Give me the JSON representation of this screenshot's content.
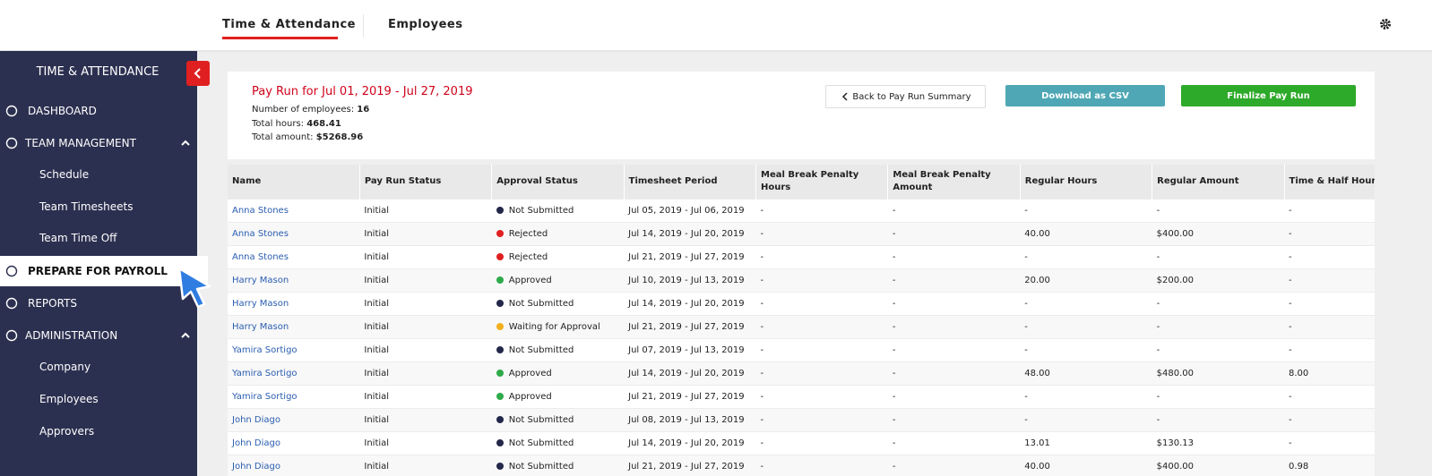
{
  "top_nav": {
    "tabs": [
      "Time & Attendance",
      "Employees"
    ]
  },
  "sidebar": {
    "title": "TIME & ATTENDANCE",
    "items": [
      {
        "label": "DASHBOARD"
      },
      {
        "label": "TEAM MANAGEMENT",
        "children": [
          "Schedule",
          "Team Timesheets",
          "Team Time Off"
        ]
      },
      {
        "label": "PREPARE FOR PAYROLL",
        "active": true
      },
      {
        "label": "REPORTS"
      },
      {
        "label": "ADMINISTRATION",
        "children": [
          "Company",
          "Employees",
          "Approvers"
        ]
      }
    ]
  },
  "pay_run": {
    "title": "Pay Run for Jul 01, 2019 - Jul 27, 2019",
    "stats": [
      {
        "label": "Number of employees:",
        "value": "16"
      },
      {
        "label": "Total hours:",
        "value": "468.41"
      },
      {
        "label": "Total amount:",
        "value": "$5268.96"
      }
    ],
    "buttons": {
      "back": "Back to Pay Run Summary",
      "download": "Download as CSV",
      "finalize": "Finalize Pay Run"
    }
  },
  "table": {
    "columns": [
      "Name",
      "Pay Run Status",
      "Approval Status",
      "Timesheet Period",
      "Meal Break Penalty Hours",
      "Meal Break Penalty Amount",
      "Regular Hours",
      "Regular Amount",
      "Time & Half Hours"
    ],
    "status_colors": {
      "Not Submitted": "#23284a",
      "Rejected": "#e02020",
      "Approved": "#2eaa4a",
      "Waiting for Approval": "#f2b01e"
    },
    "rows": [
      [
        "Anna Stones",
        "Initial",
        "Not Submitted",
        "Jul 05, 2019 - Jul 06, 2019",
        "-",
        "-",
        "-",
        "-",
        "-"
      ],
      [
        "Anna Stones",
        "Initial",
        "Rejected",
        "Jul 14, 2019 - Jul 20, 2019",
        "-",
        "-",
        "40.00",
        "$400.00",
        "-"
      ],
      [
        "Anna Stones",
        "Initial",
        "Rejected",
        "Jul 21, 2019 - Jul 27, 2019",
        "-",
        "-",
        "-",
        "-",
        "-"
      ],
      [
        "Harry Mason",
        "Initial",
        "Approved",
        "Jul 10, 2019 - Jul 13, 2019",
        "-",
        "-",
        "20.00",
        "$200.00",
        "-"
      ],
      [
        "Harry Mason",
        "Initial",
        "Not Submitted",
        "Jul 14, 2019 - Jul 20, 2019",
        "-",
        "-",
        "-",
        "-",
        "-"
      ],
      [
        "Harry Mason",
        "Initial",
        "Waiting for Approval",
        "Jul 21, 2019 - Jul 27, 2019",
        "-",
        "-",
        "-",
        "-",
        "-"
      ],
      [
        "Yamira Sortigo",
        "Initial",
        "Not Submitted",
        "Jul 07, 2019 - Jul 13, 2019",
        "-",
        "-",
        "-",
        "-",
        "-"
      ],
      [
        "Yamira Sortigo",
        "Initial",
        "Approved",
        "Jul 14, 2019 - Jul 20, 2019",
        "-",
        "-",
        "48.00",
        "$480.00",
        "8.00"
      ],
      [
        "Yamira Sortigo",
        "Initial",
        "Approved",
        "Jul 21, 2019 - Jul 27, 2019",
        "-",
        "-",
        "-",
        "-",
        "-"
      ],
      [
        "John Diago",
        "Initial",
        "Not Submitted",
        "Jul 08, 2019 - Jul 13, 2019",
        "-",
        "-",
        "-",
        "-",
        "-"
      ],
      [
        "John Diago",
        "Initial",
        "Not Submitted",
        "Jul 14, 2019 - Jul 20, 2019",
        "-",
        "-",
        "13.01",
        "$130.13",
        "-"
      ],
      [
        "John Diago",
        "Initial",
        "Not Submitted",
        "Jul 21, 2019 - Jul 27, 2019",
        "-",
        "-",
        "40.00",
        "$400.00",
        "0.98"
      ]
    ]
  }
}
